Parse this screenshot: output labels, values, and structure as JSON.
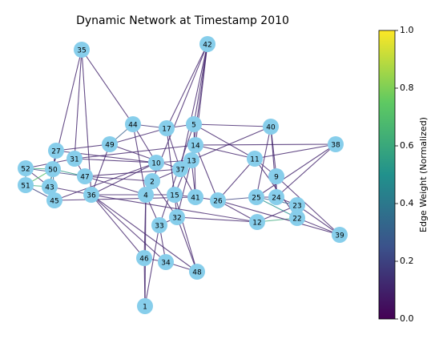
{
  "chart_data": {
    "type": "network",
    "title": "Dynamic Network at Timestamp 2010",
    "colorbar_label": "Edge Weight (Normalized)",
    "colormap": "viridis",
    "clim": [
      0,
      1
    ],
    "cticks": [
      {
        "value": 0,
        "label": "0.0"
      },
      0.2,
      0.4,
      0.6,
      0.8,
      {
        "value": 1,
        "label": "1.0"
      }
    ],
    "nodes": [
      35,
      42,
      44,
      17,
      5,
      40,
      38,
      14,
      27,
      49,
      31,
      11,
      13,
      10,
      52,
      50,
      47,
      37,
      9,
      2,
      51,
      43,
      36,
      4,
      15,
      41,
      26,
      25,
      24,
      23,
      45,
      22,
      32,
      12,
      33,
      39,
      46,
      34,
      48,
      1
    ],
    "edges": [
      [
        35,
        44,
        0.1
      ],
      [
        35,
        50,
        0.1
      ],
      [
        35,
        36,
        0.1
      ],
      [
        35,
        31,
        0.1
      ],
      [
        42,
        17,
        0.1
      ],
      [
        42,
        5,
        0.1
      ],
      [
        42,
        14,
        0.1
      ],
      [
        42,
        13,
        0.1
      ],
      [
        42,
        37,
        0.1
      ],
      [
        42,
        2,
        0.1
      ],
      [
        44,
        17,
        0.15
      ],
      [
        44,
        10,
        0.1
      ],
      [
        44,
        4,
        0.1
      ],
      [
        44,
        49,
        0.3
      ],
      [
        17,
        5,
        0.1
      ],
      [
        17,
        37,
        0.1
      ],
      [
        17,
        15,
        0.1
      ],
      [
        17,
        49,
        0.1
      ],
      [
        5,
        40,
        0.1
      ],
      [
        5,
        11,
        0.1
      ],
      [
        5,
        41,
        0.1
      ],
      [
        5,
        33,
        0.1
      ],
      [
        40,
        9,
        0.1
      ],
      [
        40,
        25,
        0.1
      ],
      [
        40,
        24,
        0.1
      ],
      [
        40,
        13,
        0.1
      ],
      [
        38,
        11,
        0.1
      ],
      [
        38,
        25,
        0.1
      ],
      [
        38,
        14,
        0.1
      ],
      [
        38,
        24,
        0.1
      ],
      [
        14,
        11,
        0.1
      ],
      [
        14,
        26,
        0.1
      ],
      [
        14,
        15,
        0.1
      ],
      [
        27,
        50,
        0.2
      ],
      [
        27,
        43,
        0.1
      ],
      [
        27,
        10,
        0.1
      ],
      [
        27,
        49,
        0.1
      ],
      [
        31,
        47,
        0.1
      ],
      [
        31,
        10,
        0.1
      ],
      [
        31,
        52,
        0.1
      ],
      [
        49,
        37,
        0.1
      ],
      [
        49,
        36,
        0.1
      ],
      [
        11,
        9,
        0.1
      ],
      [
        11,
        26,
        0.1
      ],
      [
        11,
        22,
        0.1
      ],
      [
        13,
        41,
        0.1
      ],
      [
        13,
        32,
        0.1
      ],
      [
        10,
        36,
        0.1
      ],
      [
        10,
        13,
        0.1
      ],
      [
        52,
        50,
        0.6
      ],
      [
        52,
        51,
        0.4
      ],
      [
        52,
        47,
        0.2
      ],
      [
        52,
        43,
        0.1
      ],
      [
        50,
        51,
        0.7
      ],
      [
        50,
        43,
        0.5
      ],
      [
        50,
        47,
        0.55
      ],
      [
        50,
        45,
        0.3
      ],
      [
        51,
        43,
        0.6
      ],
      [
        51,
        45,
        0.2
      ],
      [
        43,
        45,
        0.4
      ],
      [
        43,
        36,
        0.1
      ],
      [
        47,
        37,
        0.1
      ],
      [
        47,
        2,
        0.1
      ],
      [
        47,
        4,
        0.1
      ],
      [
        36,
        4,
        0.1
      ],
      [
        36,
        46,
        0.1
      ],
      [
        36,
        34,
        0.1
      ],
      [
        36,
        48,
        0.1
      ],
      [
        37,
        2,
        0.1
      ],
      [
        37,
        41,
        0.1
      ],
      [
        2,
        4,
        0.1
      ],
      [
        2,
        32,
        0.1
      ],
      [
        4,
        15,
        0.1
      ],
      [
        4,
        33,
        0.1
      ],
      [
        4,
        46,
        0.1
      ],
      [
        4,
        1,
        0.1
      ],
      [
        15,
        41,
        0.1
      ],
      [
        15,
        32,
        0.1
      ],
      [
        41,
        26,
        0.1
      ],
      [
        26,
        25,
        0.2
      ],
      [
        26,
        12,
        0.1
      ],
      [
        25,
        24,
        0.1
      ],
      [
        25,
        22,
        0.5
      ],
      [
        25,
        23,
        0.3
      ],
      [
        24,
        23,
        0.1
      ],
      [
        24,
        9,
        0.1
      ],
      [
        23,
        12,
        0.1
      ],
      [
        23,
        39,
        0.1
      ],
      [
        22,
        39,
        0.1
      ],
      [
        22,
        12,
        0.6
      ],
      [
        12,
        32,
        0.1
      ],
      [
        32,
        33,
        0.1
      ],
      [
        32,
        48,
        0.1
      ],
      [
        33,
        34,
        0.1
      ],
      [
        46,
        34,
        0.1
      ],
      [
        46,
        1,
        0.1
      ],
      [
        34,
        48,
        0.1
      ],
      [
        48,
        15,
        0.1
      ],
      [
        9,
        39,
        0.1
      ],
      [
        26,
        39,
        0.1
      ],
      [
        31,
        14,
        0.1
      ],
      [
        45,
        10,
        0.1
      ],
      [
        45,
        41,
        0.1
      ],
      [
        1,
        33,
        0.1
      ],
      [
        12,
        36,
        0.1
      ]
    ]
  }
}
